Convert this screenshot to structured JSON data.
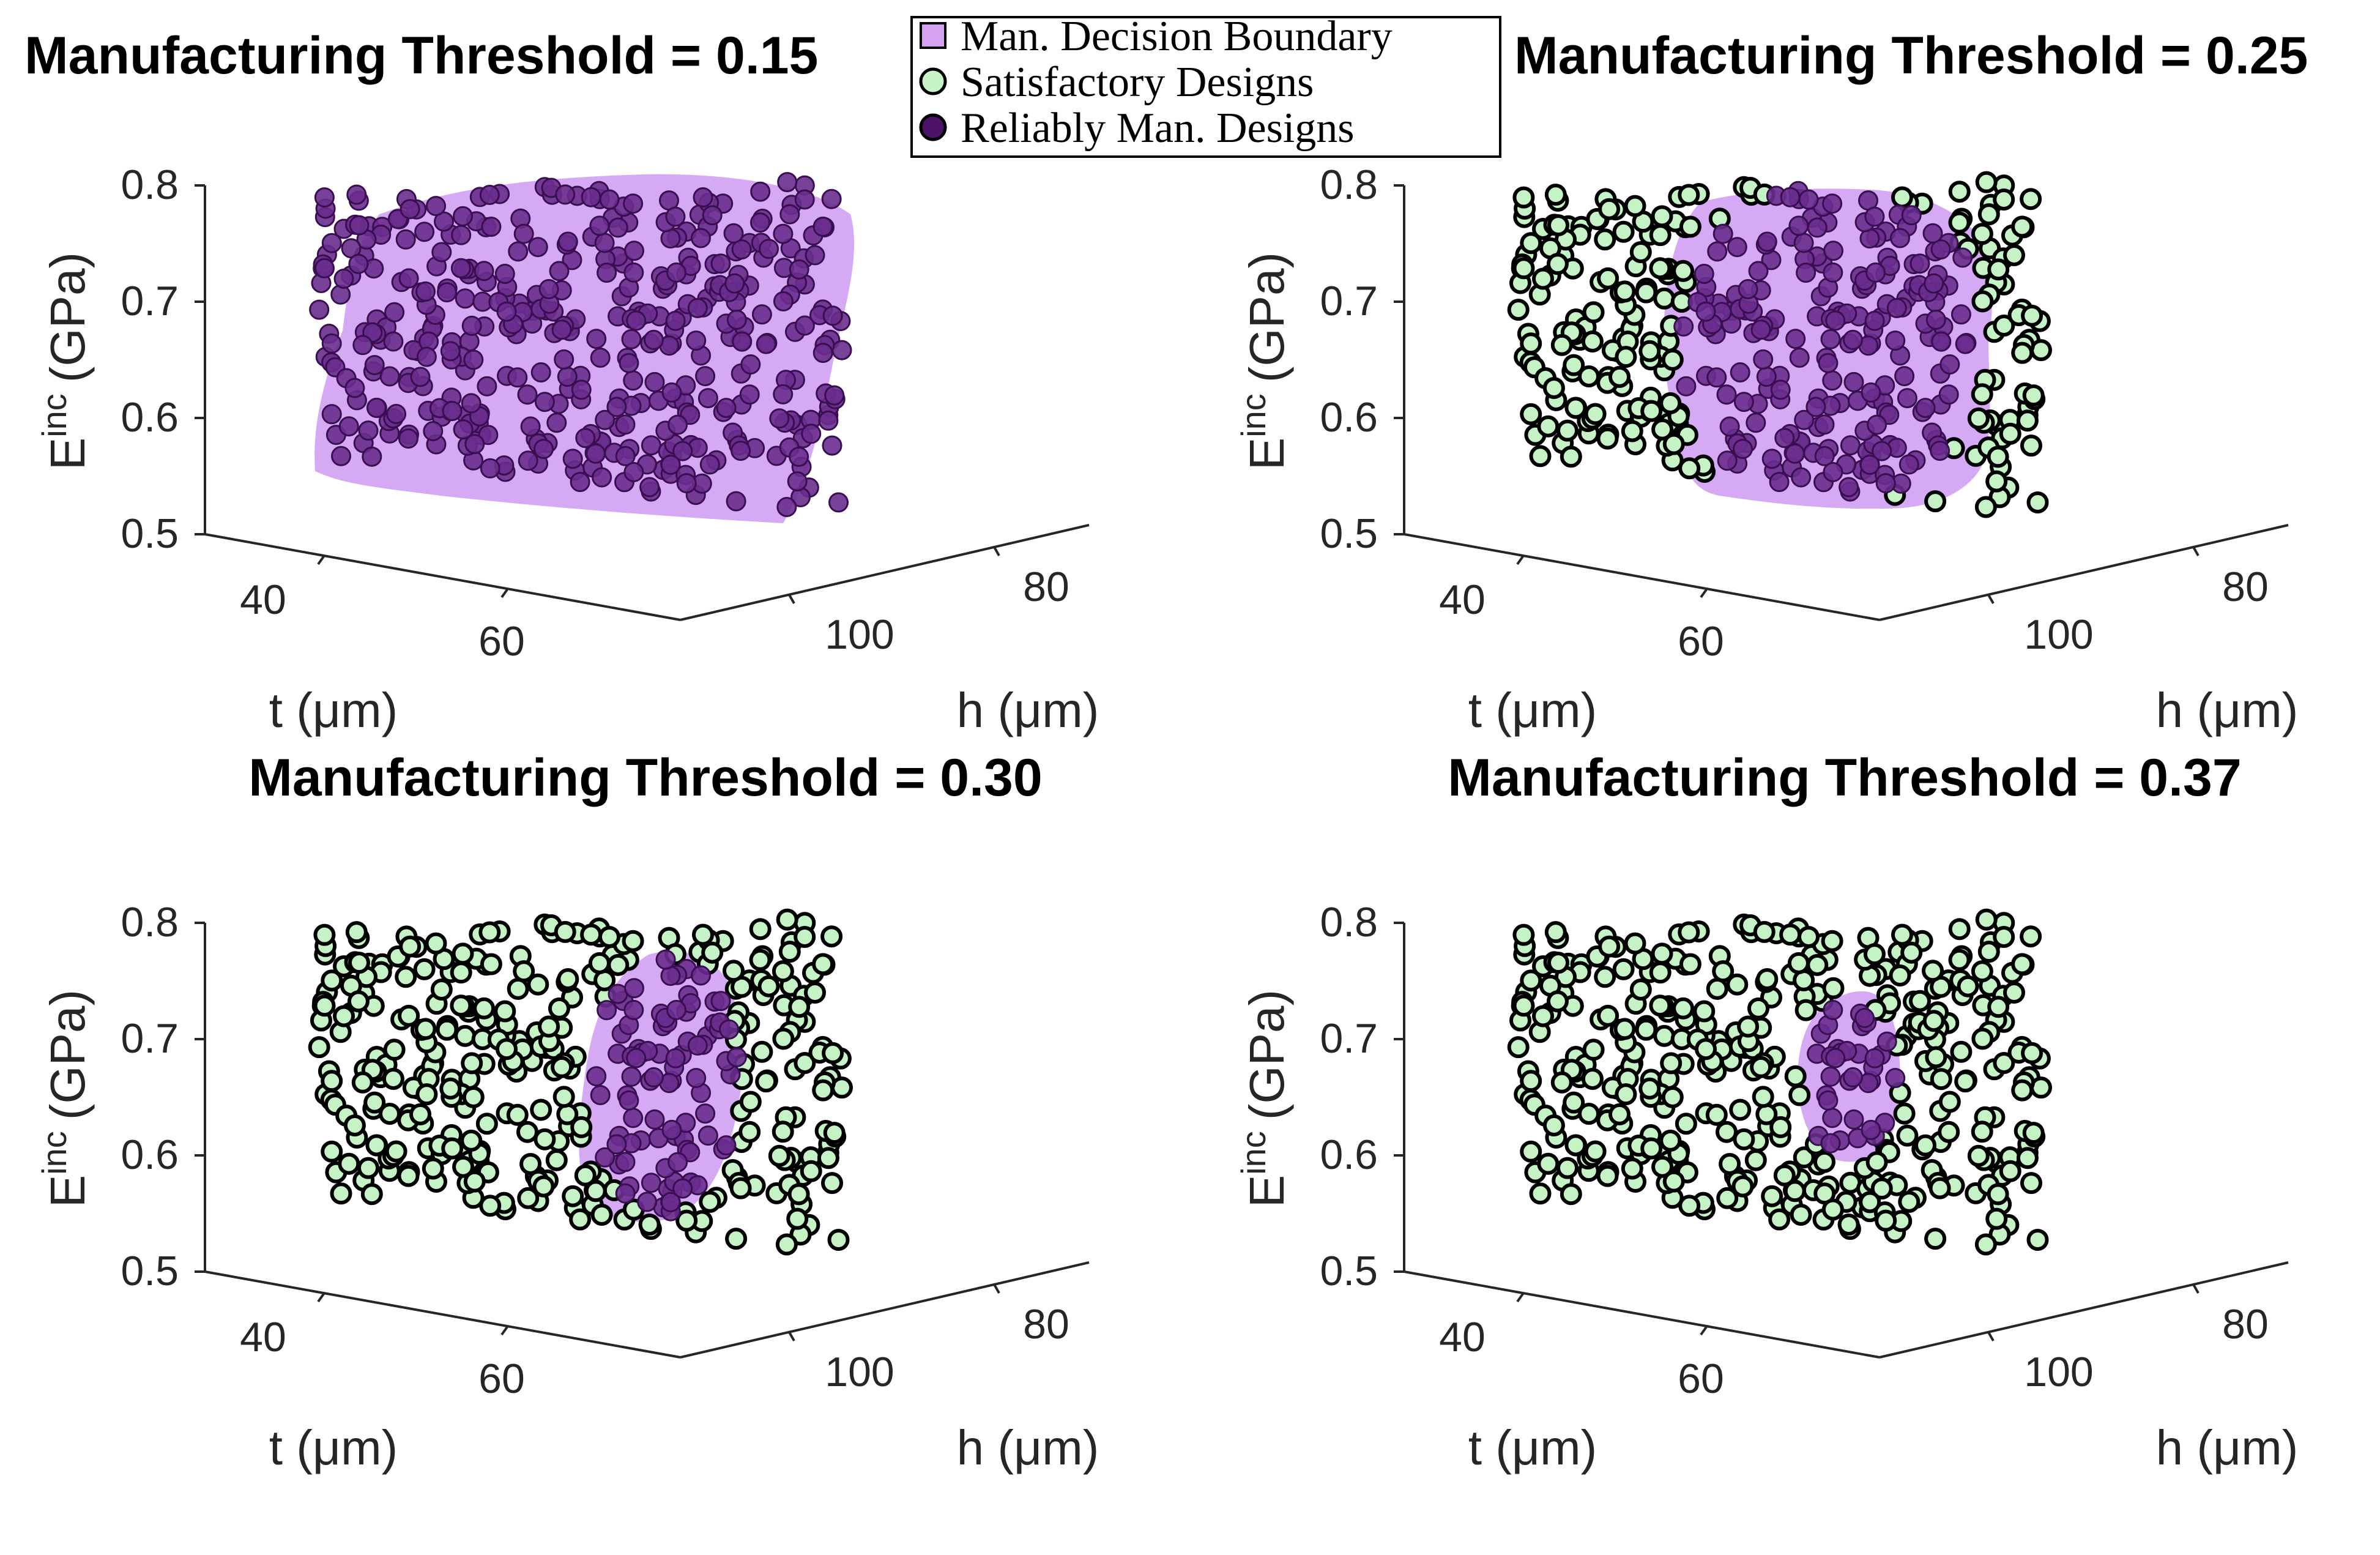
{
  "legend": {
    "items": [
      {
        "label": "Man. Decision Boundary",
        "marker": "square",
        "color": "#d6a3f2"
      },
      {
        "label": "Satisfactory Designs",
        "marker": "circle",
        "color": "#c8f5c8"
      },
      {
        "label": "Reliably Man. Designs",
        "marker": "circle",
        "color": "#4b1268"
      }
    ]
  },
  "colors": {
    "boundary_fill": "#cf9af2",
    "satisfactory": "#c6f3c6",
    "reliable": "#6a2d8e",
    "reliable_edge": "#3a0f52",
    "marker_edge": "#000000"
  },
  "chart_data": [
    {
      "type": "scatter",
      "title": "Manufacturing Threshold = 0.15",
      "xlabel": "t (μm)",
      "ylabel": "h (μm)",
      "zlabel_base": "E",
      "zlabel_sup": "inc",
      "zlabel_unit": "(GPa)",
      "x_ticks": [
        "40",
        "60"
      ],
      "y_ticks": [
        "80",
        "100"
      ],
      "z_ticks": [
        "0.5",
        "0.6",
        "0.7",
        "0.8"
      ],
      "xlim": [
        30,
        80
      ],
      "ylim": [
        70,
        110
      ],
      "zlim": [
        0.5,
        0.8
      ],
      "threshold": 0.15,
      "region": {
        "t": [
          30,
          80
        ],
        "h": [
          70,
          110
        ],
        "E": [
          0.54,
          0.79
        ]
      }
    },
    {
      "type": "scatter",
      "title": "Manufacturing Threshold = 0.25",
      "xlabel": "t (μm)",
      "ylabel": "h (μm)",
      "zlabel_base": "E",
      "zlabel_sup": "inc",
      "zlabel_unit": "(GPa)",
      "x_ticks": [
        "40",
        "60"
      ],
      "y_ticks": [
        "80",
        "100"
      ],
      "z_ticks": [
        "0.5",
        "0.6",
        "0.7",
        "0.8"
      ],
      "xlim": [
        30,
        80
      ],
      "ylim": [
        70,
        110
      ],
      "zlim": [
        0.5,
        0.8
      ],
      "threshold": 0.25,
      "region": {
        "t": [
          40,
          75
        ],
        "h": [
          75,
          105
        ],
        "E": [
          0.53,
          0.79
        ]
      }
    },
    {
      "type": "scatter",
      "title": "Manufacturing Threshold = 0.30",
      "xlabel": "t (μm)",
      "ylabel": "h (μm)",
      "zlabel_base": "E",
      "zlabel_sup": "inc",
      "zlabel_unit": "(GPa)",
      "x_ticks": [
        "40",
        "60"
      ],
      "y_ticks": [
        "80",
        "100"
      ],
      "z_ticks": [
        "0.5",
        "0.6",
        "0.7",
        "0.8"
      ],
      "xlim": [
        30,
        80
      ],
      "ylim": [
        70,
        110
      ],
      "zlim": [
        0.5,
        0.8
      ],
      "threshold": 0.3,
      "region": {
        "t": [
          55,
          72
        ],
        "h": [
          80,
          100
        ],
        "E": [
          0.55,
          0.76
        ]
      }
    },
    {
      "type": "scatter",
      "title": "Manufacturing Threshold = 0.37",
      "xlabel": "t (μm)",
      "ylabel": "h (μm)",
      "zlabel_base": "E",
      "zlabel_sup": "inc",
      "zlabel_unit": "(GPa)",
      "x_ticks": [
        "40",
        "60"
      ],
      "y_ticks": [
        "80",
        "100"
      ],
      "z_ticks": [
        "0.5",
        "0.6",
        "0.7",
        "0.8"
      ],
      "xlim": [
        30,
        80
      ],
      "ylim": [
        70,
        110
      ],
      "zlim": [
        0.5,
        0.8
      ],
      "threshold": 0.37,
      "region": {
        "t": [
          57,
          68
        ],
        "h": [
          85,
          98
        ],
        "E": [
          0.6,
          0.74
        ]
      }
    }
  ]
}
